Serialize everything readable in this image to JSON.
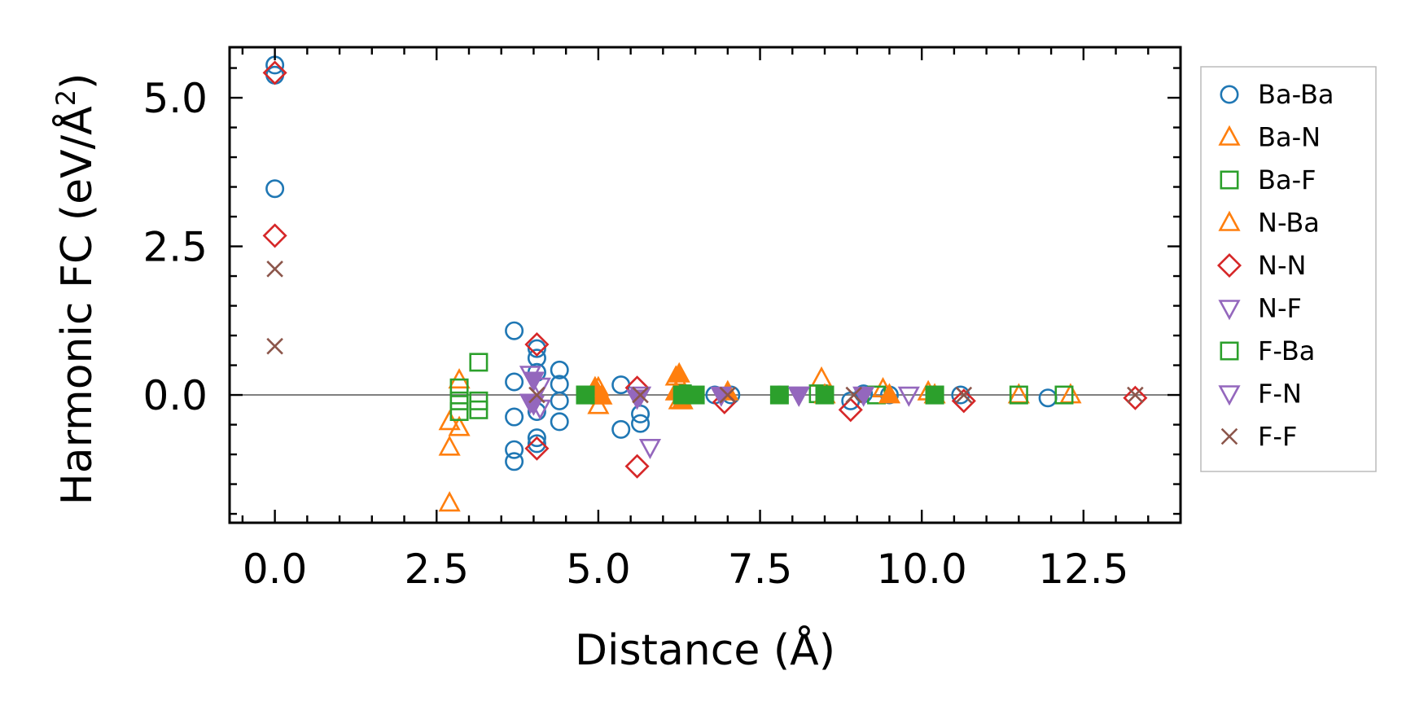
{
  "chart_data": {
    "type": "scatter",
    "xlabel": "Distance (Å)",
    "ylabel_main": "Harmonic FC (eV/Å",
    "ylabel_sup": "2",
    "ylabel_close": ")",
    "xlim": [
      -0.7,
      14.0
    ],
    "ylim": [
      -2.15,
      5.85
    ],
    "x_ticks": [
      0.0,
      2.5,
      5.0,
      7.5,
      10.0,
      12.5
    ],
    "x_tick_labels": [
      "0.0",
      "2.5",
      "5.0",
      "7.5",
      "10.0",
      "12.5"
    ],
    "y_ticks": [
      0.0,
      2.5,
      5.0
    ],
    "y_tick_labels": [
      "0.0",
      "2.5",
      "5.0"
    ],
    "zero_line": 0.0,
    "legend_position": "outside-right",
    "series": [
      {
        "name": "Ba-Ba",
        "marker": "circle",
        "color": "#1f77b4",
        "filled": false,
        "points": [
          [
            0.0,
            5.55
          ],
          [
            0.0,
            5.38
          ],
          [
            0.0,
            3.47
          ],
          [
            3.7,
            1.08
          ],
          [
            3.7,
            0.22
          ],
          [
            3.7,
            -0.37
          ],
          [
            3.7,
            -0.92
          ],
          [
            3.7,
            -1.12
          ],
          [
            4.05,
            0.78
          ],
          [
            4.05,
            0.62
          ],
          [
            4.05,
            0.38
          ],
          [
            4.05,
            -0.28
          ],
          [
            4.05,
            -0.72
          ],
          [
            4.05,
            -0.82
          ],
          [
            4.4,
            0.42
          ],
          [
            4.4,
            0.18
          ],
          [
            4.4,
            -0.1
          ],
          [
            4.4,
            -0.45
          ],
          [
            5.35,
            0.17
          ],
          [
            5.35,
            -0.58
          ],
          [
            5.65,
            -0.32
          ],
          [
            5.65,
            -0.48
          ],
          [
            6.8,
            0.0
          ],
          [
            7.05,
            0.0
          ],
          [
            7.8,
            0.0
          ],
          [
            8.9,
            -0.1
          ],
          [
            9.1,
            0.02
          ],
          [
            9.5,
            0.0
          ],
          [
            10.6,
            0.0
          ],
          [
            11.95,
            -0.05
          ]
        ]
      },
      {
        "name": "Ba-N",
        "marker": "triangle-up",
        "color": "#ff7f0e",
        "filled": false,
        "points": [
          [
            2.7,
            -0.45
          ],
          [
            2.7,
            -0.88
          ],
          [
            2.7,
            -1.82
          ],
          [
            2.85,
            0.25
          ],
          [
            2.85,
            -0.55
          ],
          [
            5.0,
            0.12
          ],
          [
            5.0,
            -0.18
          ],
          [
            6.2,
            0.3
          ],
          [
            6.25,
            -0.1
          ],
          [
            8.45,
            0.28
          ],
          [
            9.4,
            0.1
          ],
          [
            10.1,
            0.05
          ],
          [
            11.5,
            0.0
          ],
          [
            12.3,
            0.0
          ]
        ]
      },
      {
        "name": "Ba-F",
        "marker": "square",
        "color": "#2ca02c",
        "filled": false,
        "points": [
          [
            2.85,
            0.12
          ],
          [
            2.85,
            -0.1
          ],
          [
            2.85,
            -0.28
          ],
          [
            3.15,
            0.55
          ],
          [
            3.15,
            -0.1
          ],
          [
            3.15,
            -0.25
          ],
          [
            4.8,
            0.0
          ],
          [
            6.3,
            0.02
          ],
          [
            8.4,
            0.02
          ],
          [
            9.3,
            0.0
          ],
          [
            10.2,
            0.0
          ],
          [
            11.5,
            0.0
          ],
          [
            12.2,
            0.0
          ]
        ]
      },
      {
        "name": "N-Ba",
        "marker": "triangle-up",
        "color": "#ff7f0e",
        "filled": true,
        "points": [
          [
            4.95,
            0.12
          ],
          [
            5.05,
            -0.02
          ],
          [
            6.25,
            0.35
          ],
          [
            6.2,
            0.05
          ],
          [
            6.3,
            -0.1
          ],
          [
            7.0,
            0.05
          ],
          [
            8.5,
            0.0
          ],
          [
            9.5,
            0.0
          ],
          [
            10.2,
            0.0
          ]
        ]
      },
      {
        "name": "N-N",
        "marker": "diamond",
        "color": "#d62728",
        "filled": false,
        "points": [
          [
            0.0,
            5.42
          ],
          [
            0.0,
            2.68
          ],
          [
            4.05,
            0.85
          ],
          [
            4.05,
            -0.9
          ],
          [
            5.6,
            0.12
          ],
          [
            5.6,
            -1.2
          ],
          [
            6.95,
            -0.12
          ],
          [
            8.9,
            -0.25
          ],
          [
            10.65,
            -0.1
          ],
          [
            13.3,
            -0.05
          ]
        ]
      },
      {
        "name": "N-F",
        "marker": "triangle-down",
        "color": "#9467bd",
        "filled": false,
        "points": [
          [
            3.95,
            0.35
          ],
          [
            3.95,
            -0.12
          ],
          [
            4.1,
            0.15
          ],
          [
            4.1,
            -0.22
          ],
          [
            5.8,
            -0.88
          ],
          [
            5.65,
            0.0
          ],
          [
            8.1,
            0.0
          ],
          [
            9.8,
            0.0
          ]
        ]
      },
      {
        "name": "F-Ba",
        "marker": "square",
        "color": "#2ca02c",
        "filled": true,
        "points": [
          [
            4.8,
            0.0
          ],
          [
            6.3,
            0.0
          ],
          [
            6.5,
            0.0
          ],
          [
            7.8,
            0.0
          ],
          [
            8.5,
            0.0
          ],
          [
            10.2,
            0.0
          ]
        ]
      },
      {
        "name": "F-N",
        "marker": "triangle-down",
        "color": "#9467bd",
        "filled": true,
        "points": [
          [
            4.0,
            0.25
          ],
          [
            4.0,
            -0.15
          ],
          [
            5.6,
            -0.05
          ],
          [
            6.9,
            0.0
          ],
          [
            8.1,
            0.0
          ],
          [
            9.1,
            0.0
          ]
        ]
      },
      {
        "name": "F-F",
        "marker": "x",
        "color": "#8c564b",
        "filled": false,
        "points": [
          [
            0.0,
            2.12
          ],
          [
            0.0,
            0.82
          ],
          [
            4.05,
            0.0
          ],
          [
            5.65,
            0.0
          ],
          [
            7.0,
            0.0
          ],
          [
            8.95,
            0.0
          ],
          [
            10.65,
            0.0
          ],
          [
            13.3,
            0.0
          ]
        ]
      }
    ]
  }
}
